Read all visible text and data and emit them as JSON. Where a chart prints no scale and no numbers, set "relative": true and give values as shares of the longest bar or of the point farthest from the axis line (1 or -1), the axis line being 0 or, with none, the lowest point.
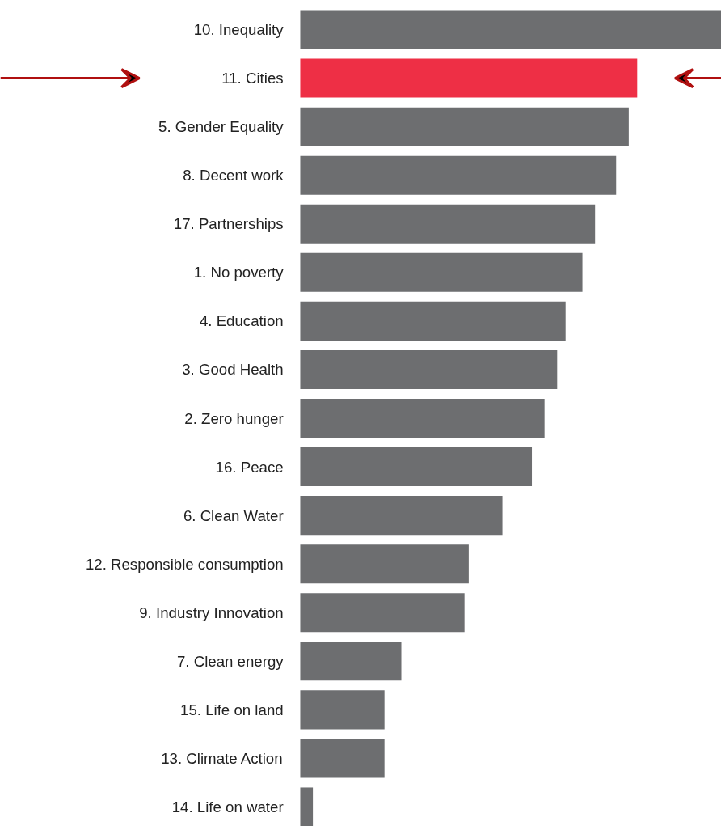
{
  "chart_data": {
    "type": "bar",
    "orientation": "horizontal",
    "relative": true,
    "categories": [
      "10. Inequality",
      "11. Cities",
      "5. Gender Equality",
      "8. Decent work",
      "17. Partnerships",
      "1. No poverty",
      "4. Education",
      "3. Good Health",
      "2. Zero hunger",
      "16. Peace",
      "6. Clean Water",
      "12. Responsible consumption",
      "9. Industry Innovation",
      "7. Clean energy",
      "15. Life on land",
      "13. Climate Action",
      "14. Life on water"
    ],
    "values": [
      1,
      0.8,
      0.78,
      0.75,
      0.7,
      0.67,
      0.63,
      0.61,
      0.58,
      0.55,
      0.48,
      0.4,
      0.39,
      0.24,
      0.2,
      0.2,
      0.03
    ],
    "colors": [
      "#6d6e70",
      "#ee2f45",
      "#6d6e70",
      "#6d6e70",
      "#6d6e70",
      "#6d6e70",
      "#6d6e70",
      "#6d6e70",
      "#6d6e70",
      "#6d6e70",
      "#6d6e70",
      "#6d6e70",
      "#6d6e70",
      "#6d6e70",
      "#6d6e70",
      "#6d6e70",
      "#6d6e70"
    ],
    "grid": false
  }
}
